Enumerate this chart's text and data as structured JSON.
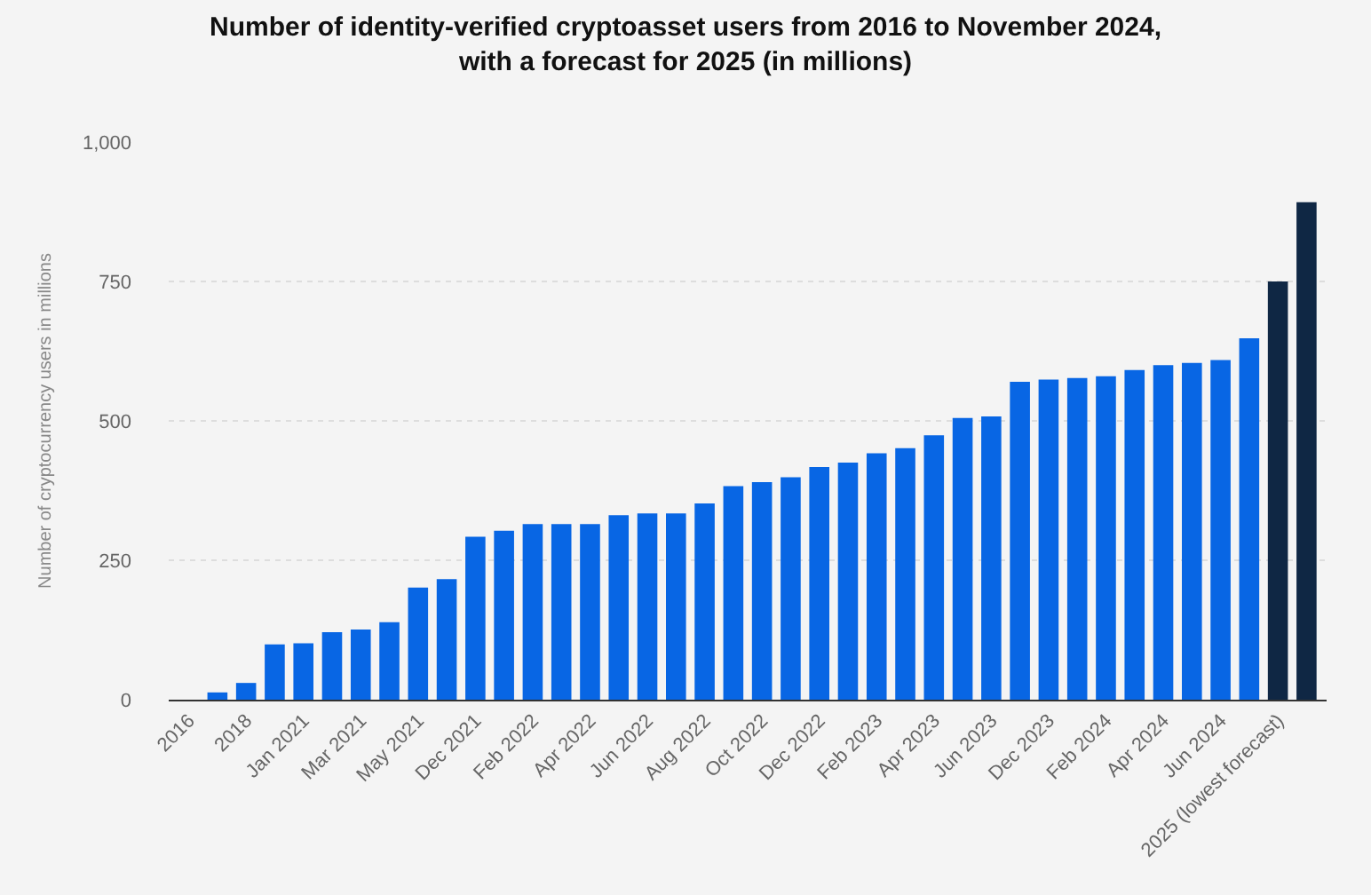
{
  "chart_data": {
    "type": "bar",
    "title": "Number of identity-verified cryptoasset users from 2016 to November 2024, with a forecast for 2025 (in millions)",
    "ylabel": "Number of cryptocurrency users in millions",
    "categories": [
      "2016",
      null,
      "2018",
      null,
      "Jan 2021",
      null,
      "Mar 2021",
      null,
      "May 2021",
      null,
      "Dec 2021",
      null,
      "Feb 2022",
      null,
      "Apr 2022",
      null,
      "Jun 2022",
      null,
      "Aug 2022",
      null,
      "Oct 2022",
      null,
      "Dec 2022",
      null,
      "Feb 2023",
      null,
      "Apr 2023",
      null,
      "Jun 2023",
      null,
      "Dec 2023",
      null,
      "Feb 2024",
      null,
      "Apr 2024",
      null,
      "Jun 2024",
      null,
      "2025 (lowest forecast)",
      null
    ],
    "values": [
      0,
      13,
      30,
      99,
      101,
      121,
      126,
      139,
      201,
      216,
      292,
      303,
      315,
      315,
      315,
      331,
      334,
      334,
      352,
      383,
      390,
      399,
      417,
      425,
      442,
      451,
      474,
      505,
      508,
      570,
      574,
      577,
      580,
      591,
      600,
      604,
      609,
      648,
      750,
      892
    ],
    "colors": [
      "#0866e4",
      "#0866e4",
      "#0866e4",
      "#0866e4",
      "#0866e4",
      "#0866e4",
      "#0866e4",
      "#0866e4",
      "#0866e4",
      "#0866e4",
      "#0866e4",
      "#0866e4",
      "#0866e4",
      "#0866e4",
      "#0866e4",
      "#0866e4",
      "#0866e4",
      "#0866e4",
      "#0866e4",
      "#0866e4",
      "#0866e4",
      "#0866e4",
      "#0866e4",
      "#0866e4",
      "#0866e4",
      "#0866e4",
      "#0866e4",
      "#0866e4",
      "#0866e4",
      "#0866e4",
      "#0866e4",
      "#0866e4",
      "#0866e4",
      "#0866e4",
      "#0866e4",
      "#0866e4",
      "#0866e4",
      "#0866e4",
      "#0f2744",
      "#0f2744"
    ],
    "ylim": [
      0,
      1000
    ],
    "yticks": [
      0,
      250,
      500,
      750,
      {
        "value": 1000,
        "label": "1,000"
      }
    ],
    "grid": "y"
  }
}
